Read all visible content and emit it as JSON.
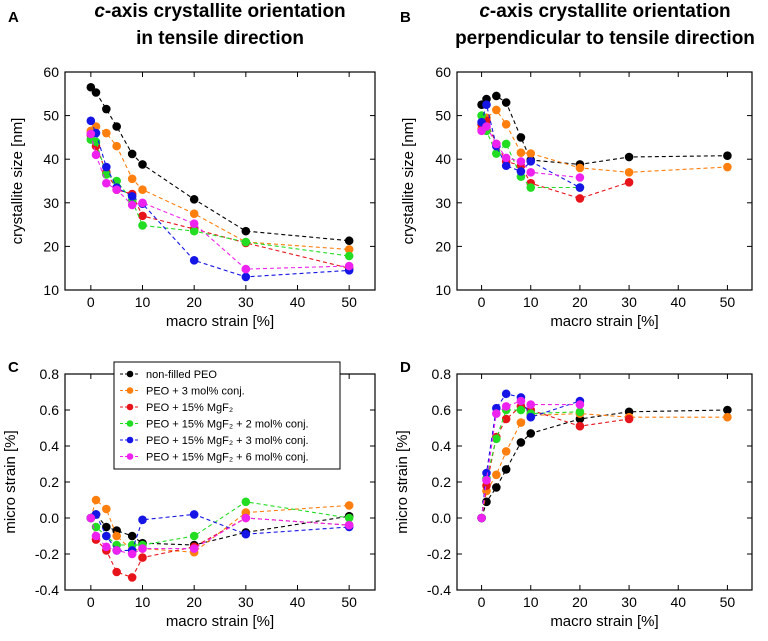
{
  "colors": {
    "non_filled": "#000000",
    "conj3": "#ff7f0e",
    "mgf2": "#e8141b",
    "mgf2_conj2": "#22dd22",
    "mgf2_conj3": "#1515e6",
    "mgf2_conj6": "#ee22ee"
  },
  "legend": {
    "entries": [
      "non-filled PEO",
      "PEO + 3 mol% conj.",
      "PEO + 15% MgF₂",
      "PEO + 15% MgF₂ + 2 mol% conj.",
      "PEO + 15% MgF₂ + 3 mol% conj.",
      "PEO + 15% MgF₂ + 6 mol% conj."
    ]
  },
  "chart_data": [
    {
      "panel": "A",
      "type": "line",
      "title": [
        "c-axis crystallite orientation",
        "in tensile direction"
      ],
      "title_italic_prefix": "c",
      "xlabel": "macro strain [%]",
      "ylabel": "crystallite size [nm]",
      "xlim": [
        -5,
        55
      ],
      "ylim": [
        10,
        60
      ],
      "xticks": [
        0,
        10,
        20,
        30,
        40,
        50
      ],
      "yticks": [
        10,
        20,
        30,
        40,
        50,
        60
      ],
      "series": [
        {
          "name": "non-filled PEO",
          "color_key": "non_filled",
          "x": [
            0,
            1,
            3,
            5,
            8,
            10,
            20,
            30,
            50
          ],
          "y": [
            56.5,
            55.3,
            51.5,
            47.5,
            41.2,
            38.8,
            30.8,
            23.5,
            21.3
          ]
        },
        {
          "name": "PEO + 3 mol% conj.",
          "color_key": "conj3",
          "x": [
            0,
            1,
            3,
            5,
            8,
            10,
            20,
            30,
            50
          ],
          "y": [
            46.5,
            47.5,
            46.0,
            43.0,
            35.5,
            33.0,
            27.5,
            21.0,
            19.3
          ]
        },
        {
          "name": "PEO + 15% MgF₂",
          "color_key": "mgf2",
          "x": [
            0,
            1,
            3,
            5,
            8,
            10,
            20,
            30,
            50
          ],
          "y": [
            45.5,
            43.0,
            37.0,
            33.0,
            32.0,
            27.0,
            24.0,
            20.8,
            15.0
          ]
        },
        {
          "name": "PEO + 15% MgF₂ + 2 mol% conj.",
          "color_key": "mgf2_conj2",
          "x": [
            0,
            1,
            3,
            5,
            8,
            10,
            20,
            30,
            50
          ],
          "y": [
            44.5,
            44.0,
            36.5,
            35.0,
            30.5,
            24.8,
            23.5,
            21.0,
            17.8
          ]
        },
        {
          "name": "PEO + 15% MgF₂ + 3 mol% conj.",
          "color_key": "mgf2_conj3",
          "x": [
            0,
            1,
            3,
            5,
            8,
            10,
            20,
            30,
            50
          ],
          "y": [
            48.8,
            46.0,
            38.2,
            33.5,
            31.5,
            29.8,
            16.8,
            13.0,
            14.5
          ]
        },
        {
          "name": "PEO + 15% MgF₂ + 6 mol% conj.",
          "color_key": "mgf2_conj6",
          "x": [
            0,
            1,
            3,
            5,
            8,
            10,
            20,
            30,
            50
          ],
          "y": [
            45.8,
            41.0,
            34.5,
            33.0,
            29.5,
            30.0,
            25.2,
            14.8,
            15.5
          ]
        }
      ]
    },
    {
      "panel": "B",
      "type": "line",
      "title": [
        "c-axis crystallite orientation",
        "perpendicular to tensile direction"
      ],
      "title_italic_prefix": "c",
      "xlabel": "macro strain [%]",
      "ylabel": "crystallite size [nm]",
      "xlim": [
        -5,
        55
      ],
      "ylim": [
        10,
        60
      ],
      "xticks": [
        0,
        10,
        20,
        30,
        40,
        50
      ],
      "yticks": [
        10,
        20,
        30,
        40,
        50,
        60
      ],
      "series": [
        {
          "name": "non-filled PEO",
          "color_key": "non_filled",
          "x": [
            0,
            1,
            3,
            5,
            8,
            10,
            20,
            30,
            50
          ],
          "y": [
            52.5,
            53.8,
            54.5,
            53.0,
            45.0,
            39.8,
            38.8,
            40.5,
            40.8
          ]
        },
        {
          "name": "PEO + 3 mol% conj.",
          "color_key": "conj3",
          "x": [
            0,
            1,
            3,
            5,
            8,
            10,
            20,
            30,
            50
          ],
          "y": [
            47.0,
            49.5,
            51.3,
            48.0,
            41.5,
            41.3,
            38.0,
            37.0,
            38.2
          ]
        },
        {
          "name": "PEO + 15% MgF₂",
          "color_key": "mgf2",
          "x": [
            0,
            1,
            3,
            5,
            8,
            10,
            20,
            30
          ],
          "y": [
            48.0,
            48.8,
            43.5,
            39.5,
            38.5,
            34.5,
            31.0,
            34.7
          ]
        },
        {
          "name": "PEO + 15% MgF₂ + 2 mol% conj.",
          "color_key": "mgf2_conj2",
          "x": [
            0,
            1,
            3,
            5,
            8,
            10,
            20
          ],
          "y": [
            50.0,
            46.5,
            41.3,
            43.5,
            36.0,
            33.5,
            33.5
          ]
        },
        {
          "name": "PEO + 15% MgF₂ + 3 mol% conj.",
          "color_key": "mgf2_conj3",
          "x": [
            0,
            1,
            3,
            5,
            8,
            10,
            20
          ],
          "y": [
            48.5,
            52.5,
            43.0,
            38.5,
            37.2,
            39.5,
            33.5
          ]
        },
        {
          "name": "PEO + 15% MgF₂ + 6 mol% conj.",
          "color_key": "mgf2_conj6",
          "x": [
            0,
            1,
            3,
            5,
            8,
            10,
            20
          ],
          "y": [
            46.5,
            47.5,
            43.5,
            40.3,
            39.5,
            37.0,
            35.8
          ]
        }
      ]
    },
    {
      "panel": "C",
      "type": "line",
      "title": [],
      "xlabel": "macro strain [%]",
      "ylabel": "micro strain [%]",
      "xlim": [
        -5,
        55
      ],
      "ylim": [
        -0.4,
        0.8
      ],
      "xticks": [
        0,
        10,
        20,
        30,
        40,
        50
      ],
      "yticks": [
        -0.4,
        -0.2,
        0.0,
        0.2,
        0.4,
        0.6,
        0.8
      ],
      "series": [
        {
          "name": "non-filled PEO",
          "color_key": "non_filled",
          "x": [
            0,
            1,
            3,
            5,
            8,
            10,
            20,
            30,
            50
          ],
          "y": [
            0.0,
            0.02,
            -0.05,
            -0.07,
            -0.1,
            -0.14,
            -0.15,
            -0.08,
            0.01
          ]
        },
        {
          "name": "PEO + 3 mol% conj.",
          "color_key": "conj3",
          "x": [
            0,
            1,
            3,
            5,
            8,
            10,
            20,
            30,
            50
          ],
          "y": [
            0.0,
            0.1,
            0.05,
            -0.1,
            -0.18,
            -0.17,
            -0.19,
            0.03,
            0.07
          ]
        },
        {
          "name": "PEO + 15% MgF₂",
          "color_key": "mgf2",
          "x": [
            0,
            1,
            3,
            5,
            8,
            10,
            20,
            30,
            50
          ],
          "y": [
            0.0,
            -0.12,
            -0.18,
            -0.3,
            -0.33,
            -0.22,
            -0.16,
            0.0,
            -0.04
          ]
        },
        {
          "name": "PEO + 15% MgF₂ + 2 mol% conj.",
          "color_key": "mgf2_conj2",
          "x": [
            0,
            1,
            3,
            5,
            8,
            10,
            20,
            30,
            50
          ],
          "y": [
            0.0,
            -0.05,
            -0.1,
            -0.15,
            -0.15,
            -0.15,
            -0.1,
            0.09,
            0.0
          ]
        },
        {
          "name": "PEO + 15% MgF₂ + 3 mol% conj.",
          "color_key": "mgf2_conj3",
          "x": [
            0,
            1,
            3,
            5,
            8,
            10,
            20,
            30,
            50
          ],
          "y": [
            0.0,
            0.02,
            -0.1,
            -0.18,
            -0.18,
            -0.01,
            0.02,
            -0.09,
            -0.05
          ]
        },
        {
          "name": "PEO + 15% MgF₂ + 6 mol% conj.",
          "color_key": "mgf2_conj6",
          "x": [
            0,
            1,
            3,
            5,
            8,
            10,
            20,
            30,
            50
          ],
          "y": [
            0.0,
            -0.1,
            -0.16,
            -0.18,
            -0.2,
            -0.17,
            -0.17,
            0.0,
            -0.04
          ]
        }
      ]
    },
    {
      "panel": "D",
      "type": "line",
      "title": [],
      "xlabel": "macro strain [%]",
      "ylabel": "micro strain [%]",
      "xlim": [
        -5,
        55
      ],
      "ylim": [
        -0.4,
        0.8
      ],
      "xticks": [
        0,
        10,
        20,
        30,
        40,
        50
      ],
      "yticks": [
        -0.4,
        -0.2,
        0.0,
        0.2,
        0.4,
        0.6,
        0.8
      ],
      "series": [
        {
          "name": "non-filled PEO",
          "color_key": "non_filled",
          "x": [
            0,
            1,
            3,
            5,
            8,
            10,
            20,
            30,
            50
          ],
          "y": [
            0.0,
            0.09,
            0.17,
            0.27,
            0.42,
            0.47,
            0.55,
            0.59,
            0.6
          ]
        },
        {
          "name": "PEO + 3 mol% conj.",
          "color_key": "conj3",
          "x": [
            0,
            1,
            3,
            5,
            8,
            10,
            20,
            30,
            50
          ],
          "y": [
            0.0,
            0.15,
            0.24,
            0.37,
            0.53,
            0.57,
            0.58,
            0.56,
            0.56
          ]
        },
        {
          "name": "PEO + 15% MgF₂",
          "color_key": "mgf2",
          "x": [
            0,
            1,
            3,
            5,
            8,
            10,
            20,
            30
          ],
          "y": [
            0.0,
            0.18,
            0.45,
            0.55,
            0.62,
            0.6,
            0.51,
            0.55
          ]
        },
        {
          "name": "PEO + 15% MgF₂ + 2 mol% conj.",
          "color_key": "mgf2_conj2",
          "x": [
            0,
            1,
            3,
            5,
            8,
            10,
            20
          ],
          "y": [
            0.0,
            0.22,
            0.44,
            0.6,
            0.6,
            0.58,
            0.59
          ]
        },
        {
          "name": "PEO + 15% MgF₂ + 3 mol% conj.",
          "color_key": "mgf2_conj3",
          "x": [
            0,
            1,
            3,
            5,
            8,
            10,
            20
          ],
          "y": [
            0.0,
            0.25,
            0.61,
            0.69,
            0.67,
            0.56,
            0.65
          ]
        },
        {
          "name": "PEO + 15% MgF₂ + 6 mol% conj.",
          "color_key": "mgf2_conj6",
          "x": [
            0,
            1,
            3,
            5,
            8,
            10,
            20
          ],
          "y": [
            0.0,
            0.21,
            0.58,
            0.62,
            0.65,
            0.63,
            0.63
          ]
        }
      ]
    }
  ]
}
